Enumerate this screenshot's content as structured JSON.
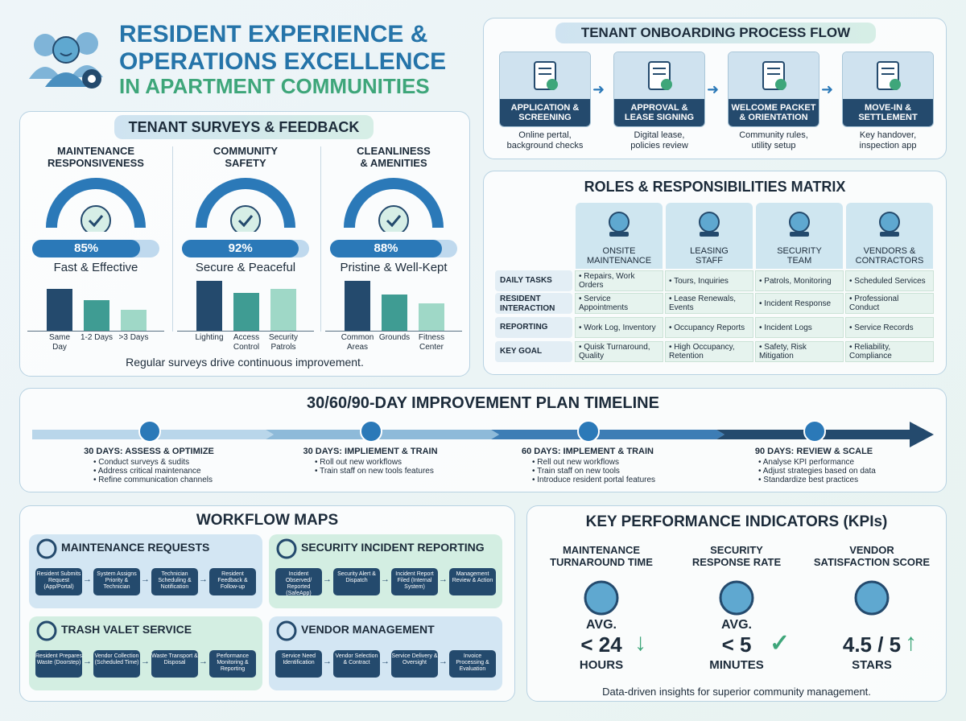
{
  "header": {
    "line1": "RESIDENT EXPERIENCE &",
    "line2": "OPERATIONS EXCELLENCE",
    "line3": "IN APARTMENT COMMUNITIES"
  },
  "surveys": {
    "title": "TENANT SURVEYS & FEEDBACK",
    "footer": "Regular surveys drive continuous improvement.",
    "columns": [
      {
        "title1": "MAINTENANCE",
        "title2": "RESPONSIVENESS",
        "percent_text": "85%",
        "percent": 85,
        "label": "Fast & Effective",
        "bars": [
          {
            "cat1": "Same",
            "cat2": "Day",
            "value": 52
          },
          {
            "cat1": "1-2 Days",
            "cat2": "",
            "value": 38
          },
          {
            "cat1": ">3 Days",
            "cat2": "",
            "value": 26
          }
        ]
      },
      {
        "title1": "COMMUNITY",
        "title2": "SAFETY",
        "percent_text": "92%",
        "percent": 92,
        "label": "Secure & Peaceful",
        "bars": [
          {
            "cat1": "Lighting",
            "cat2": "",
            "value": 62
          },
          {
            "cat1": "Access",
            "cat2": "Control",
            "value": 47
          },
          {
            "cat1": "Security",
            "cat2": "Patrols",
            "value": 52
          }
        ]
      },
      {
        "title1": "CLEANLINESS",
        "title2": "& AMENITIES",
        "percent_text": "88%",
        "percent": 88,
        "label": "Pristine & Well-Kept",
        "bars": [
          {
            "cat1": "Common",
            "cat2": "Areas",
            "value": 62
          },
          {
            "cat1": "Grounds",
            "cat2": "",
            "value": 45
          },
          {
            "cat1": "Fitness",
            "cat2": "Center",
            "value": 34
          }
        ]
      }
    ]
  },
  "onboarding": {
    "title": "TENANT ONBOARDING PROCESS FLOW",
    "steps": [
      {
        "l1": "APPLICATION &",
        "l2": "SCREENING",
        "d1": "Online pertal,",
        "d2": "background checks"
      },
      {
        "l1": "APPROVAL &",
        "l2": "LEASE SIGNING",
        "d1": "Digital lease,",
        "d2": "policies review"
      },
      {
        "l1": "WELCOME PACKET",
        "l2": "& ORIENTATION",
        "d1": "Community rules,",
        "d2": "utility setup"
      },
      {
        "l1": "MOVE-IN &",
        "l2": "SETTLEMENT",
        "d1": "Key handover,",
        "d2": "inspection app"
      }
    ]
  },
  "roles": {
    "title": "ROLES & RESPONSIBILITIES MATRIX",
    "columns": [
      {
        "l1": "ONSITE",
        "l2": "MAINTENANCE"
      },
      {
        "l1": "LEASING",
        "l2": "STAFF"
      },
      {
        "l1": "SECURITY",
        "l2": "TEAM"
      },
      {
        "l1": "VENDORS &",
        "l2": "CONTRACTORS"
      }
    ],
    "rows": [
      {
        "label": "DAILY TASKS",
        "cells": [
          "• Repairs, Work Orders",
          "• Tours, Inquiries",
          "• Patrols, Monitoring",
          "• Scheduled Services"
        ]
      },
      {
        "label": "RESIDENT INTERACTION",
        "cells": [
          "• Service Appointments",
          "• Lease Renewals, Events",
          "• Incident Response",
          "• Professional Conduct"
        ]
      },
      {
        "label": "REPORTING",
        "cells": [
          "• Work Log, Inventory",
          "• Occupancy Reports",
          "• Incident Logs",
          "• Service Records"
        ]
      },
      {
        "label": "KEY GOAL",
        "cells": [
          "• Quisk Turnaround, Quality",
          "• High Occupancy, Retention",
          "• Safety, Risk Mitigation",
          "• Reliability, Compliance"
        ]
      }
    ]
  },
  "timeline": {
    "title": "30/60/90-DAY IMPROVEMENT PLAN TIMELINE",
    "phases": [
      {
        "head": "30 DAYS: ASSESS & OPTIMIZE",
        "items": [
          "• Conduct surveys & sudits",
          "• Address critical maintenance",
          "• Refine communication channels"
        ]
      },
      {
        "head": "30 DAYS: IMPLIEMENT & TRAIN",
        "items": [
          "• Roll out new workflows",
          "• Train staff on new tools features"
        ]
      },
      {
        "head": "60 DAYS: IMPLEMENT & TRAIN",
        "items": [
          "• Rell out new workflows",
          "• Train staff on new tools",
          "• Introduce resident portal features"
        ]
      },
      {
        "head": "90 DAYS: REVIEW & SCALE",
        "items": [
          "• Analyse KPI performance",
          "• Adjust strategies based on data",
          "• Standardize best practices"
        ]
      }
    ]
  },
  "workflows": {
    "title": "WORKFLOW MAPS",
    "maps": [
      {
        "title": "MAINTENANCE REQUESTS",
        "steps": [
          "Resident Submits Request (App/Portal)",
          "System Assigns Priority & Technician",
          "Technician Scheduling & Notification",
          "Resident Feedback & Follow-up"
        ]
      },
      {
        "title": "SECURITY INCIDENT REPORTING",
        "steps": [
          "Incident Observed/ Reported (SafeApp)",
          "Security Alert & Dispatch",
          "Incident Report Filed (Internal System)",
          "Management Review & Action"
        ]
      },
      {
        "title": "TRASH VALET SERVICE",
        "steps": [
          "Resident Prepares Waste (Doorstep)",
          "Vendor Collection (Scheduled Time)",
          "Waste Transport & Disposal",
          "Performance Monitoring & Reporting"
        ]
      },
      {
        "title": "VENDOR MANAGEMENT",
        "steps": [
          "Service Need Identification",
          "Vendor Selection & Contract",
          "Service Delivery & Oversight",
          "Invoice Processing & Evaluation"
        ]
      }
    ]
  },
  "kpis": {
    "title": "KEY PERFORMANCE INDICATORS (KPIs)",
    "footer": "Data-driven insights for superior community management.",
    "items": [
      {
        "h1": "MAINTENANCE",
        "h2": "TURNAROUND TIME",
        "a": "AVG.",
        "b": "< 24",
        "c": "HOURS"
      },
      {
        "h1": "SECURITY",
        "h2": "RESPONSE RATE",
        "a": "AVG.",
        "b": "< 5",
        "c": "MINUTES"
      },
      {
        "h1": "VENDOR",
        "h2": "SATISFACTION SCORE",
        "a": "",
        "b": "4.5 / 5",
        "c": "STARS"
      }
    ]
  },
  "colors": {
    "blue": "#2574a9",
    "green": "#3ea67a",
    "navy": "#244a6d"
  }
}
